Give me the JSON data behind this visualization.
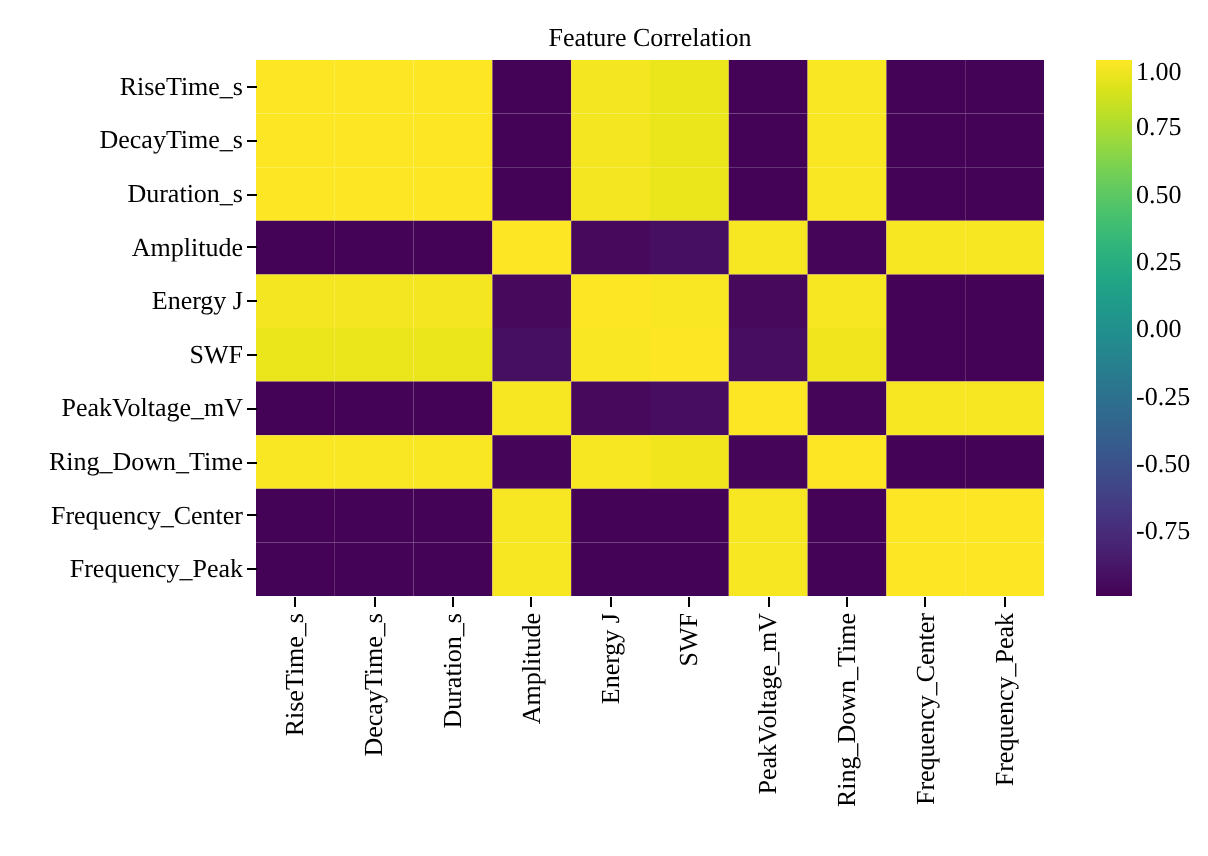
{
  "chart_data": {
    "type": "heatmap",
    "title": "Feature Correlation",
    "categories": [
      "RiseTime_s",
      "DecayTime_s",
      "Duration_s",
      "Amplitude",
      "Energy J",
      "SWF",
      "PeakVoltage_mV",
      "Ring_Down_Time",
      "Frequency_Center",
      "Frequency_Peak"
    ],
    "y_categories": [
      "RiseTime_s",
      "DecayTime_s",
      "Duration_s",
      "Amplitude",
      "Energy J",
      "SWF",
      "PeakVoltage_mV",
      "Ring_Down_Time",
      "Frequency_Center",
      "Frequency_Peak"
    ],
    "cells": [
      [
        1,
        1,
        1,
        -0.98,
        0.97,
        0.94,
        -0.98,
        0.99,
        -0.98,
        -0.98
      ],
      [
        1,
        1,
        1,
        -0.98,
        0.97,
        0.94,
        -0.98,
        0.99,
        -0.98,
        -0.98
      ],
      [
        1,
        1,
        1,
        -0.98,
        0.97,
        0.94,
        -0.98,
        0.99,
        -0.98,
        -0.98
      ],
      [
        -0.98,
        -0.98,
        -0.98,
        1,
        -0.95,
        -0.92,
        0.98,
        -0.97,
        0.98,
        0.98
      ],
      [
        0.97,
        0.97,
        0.97,
        -0.95,
        1,
        0.99,
        -0.95,
        0.98,
        -0.98,
        -0.98
      ],
      [
        0.94,
        0.94,
        0.94,
        -0.92,
        0.99,
        1,
        -0.93,
        0.96,
        -0.98,
        -0.98
      ],
      [
        -0.98,
        -0.98,
        -0.98,
        0.98,
        -0.95,
        -0.93,
        1,
        -0.97,
        0.98,
        0.98
      ],
      [
        0.99,
        0.99,
        0.99,
        -0.97,
        0.98,
        0.96,
        -0.97,
        1,
        -0.98,
        -0.98
      ],
      [
        -0.98,
        -0.98,
        -0.98,
        0.98,
        -0.98,
        -0.98,
        0.98,
        -0.98,
        1,
        1
      ],
      [
        -0.98,
        -0.98,
        -0.98,
        0.98,
        -0.98,
        -0.98,
        0.98,
        -0.98,
        1,
        1
      ]
    ],
    "clim": [
      -0.99,
      1
    ],
    "cticks": [
      {
        "value": 1,
        "label": "1.00"
      },
      {
        "value": 0.75,
        "label": "0.75"
      },
      {
        "value": 0.5,
        "label": "0.50"
      },
      {
        "value": 0.25,
        "label": "0.25"
      },
      {
        "value": 0,
        "label": "0.00"
      },
      {
        "value": -0.25,
        "label": "-0.25"
      },
      {
        "value": -0.5,
        "label": "-0.50"
      },
      {
        "value": -0.75,
        "label": "-0.75"
      }
    ]
  }
}
